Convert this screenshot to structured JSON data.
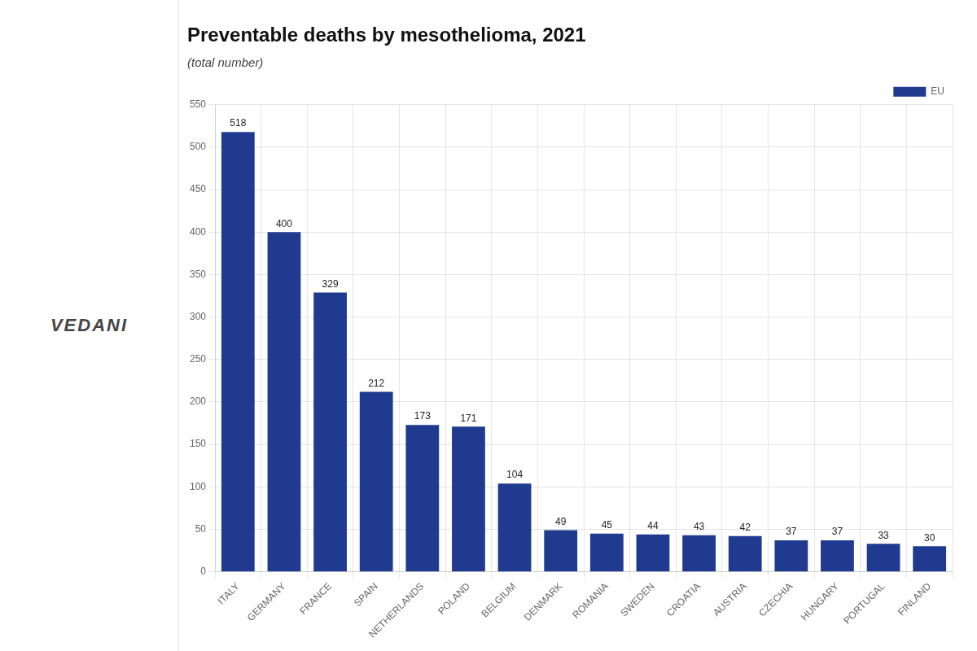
{
  "chart_data": {
    "type": "bar",
    "title": "Preventable deaths by mesothelioma, 2021",
    "subtitle": "(total number)",
    "categories": [
      "ITALY",
      "GERMANY",
      "FRANCE",
      "SPAIN",
      "NETHERLANDS",
      "POLAND",
      "BELGIUM",
      "DENMARK",
      "ROMANIA",
      "SWEDEN",
      "CROATIA",
      "AUSTRIA",
      "CZECHIA",
      "HUNGARY",
      "PORTUGAL",
      "FINLAND"
    ],
    "series": [
      {
        "name": "EU",
        "color": "#1f3a8f",
        "values": [
          518,
          400,
          329,
          212,
          173,
          171,
          104,
          49,
          45,
          44,
          43,
          42,
          37,
          37,
          33,
          30
        ]
      }
    ],
    "ylim": [
      0,
      550
    ],
    "yticks": [
      0,
      50,
      100,
      150,
      200,
      250,
      300,
      350,
      400,
      450,
      500,
      550
    ],
    "grid": true,
    "legend": "upper right",
    "data_labels": true,
    "annotations": [
      "VEDANI"
    ]
  }
}
